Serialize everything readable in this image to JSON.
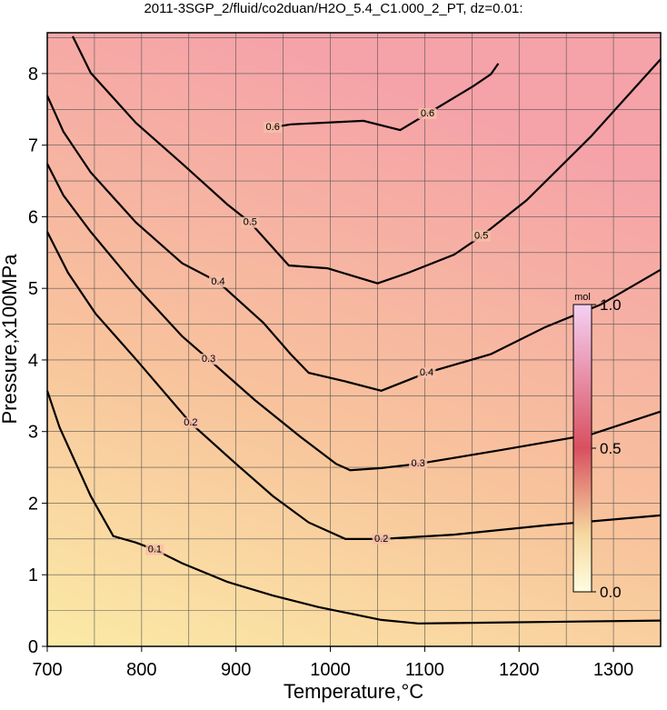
{
  "chart_data": {
    "type": "contour",
    "title": "2011-3SGP_2/fluid/co2duan/H2O_5.4_C1.000_2_PT, dz=0.01:",
    "xlabel": "Temperature,°C",
    "ylabel": "Pressure,x100MPa",
    "xlim": [
      700,
      1350
    ],
    "ylim": [
      0,
      8.57
    ],
    "xticks": [
      700,
      800,
      900,
      1000,
      1100,
      1200,
      1300
    ],
    "yticks": [
      0,
      1,
      2,
      3,
      4,
      5,
      6,
      7,
      8
    ],
    "xminorticks": [
      750,
      850,
      950,
      1050,
      1150,
      1250,
      1350
    ],
    "yminorticks": [
      0.5,
      1.5,
      2.5,
      3.5,
      4.5,
      5.5,
      6.5,
      7.5,
      8.5
    ],
    "grid": true,
    "contours": [
      {
        "level": 0.1,
        "x": [
          700,
          713,
          746,
          770,
          794,
          814,
          843,
          891,
          939,
          987,
          1054,
          1093,
          1350
        ],
        "y": [
          3.57,
          3.06,
          2.1,
          1.54,
          1.45,
          1.35,
          1.16,
          0.9,
          0.71,
          0.55,
          0.37,
          0.32,
          0.36
        ]
      },
      {
        "level": 0.2,
        "x": [
          700,
          722,
          751,
          794,
          852,
          900,
          939,
          977,
          1016,
          1054,
          1131,
          1228,
          1350
        ],
        "y": [
          5.79,
          5.22,
          4.65,
          4.01,
          3.12,
          2.55,
          2.1,
          1.73,
          1.5,
          1.5,
          1.56,
          1.69,
          1.83
        ]
      },
      {
        "level": 0.3,
        "x": [
          700,
          717,
          746,
          794,
          843,
          871,
          920,
          968,
          1006,
          1021,
          1054,
          1093,
          1180,
          1276,
          1350
        ],
        "y": [
          6.74,
          6.3,
          5.79,
          5.03,
          4.33,
          4.01,
          3.44,
          2.93,
          2.55,
          2.46,
          2.49,
          2.55,
          2.74,
          2.96,
          3.28
        ]
      },
      {
        "level": 0.4,
        "x": [
          700,
          717,
          746,
          794,
          843,
          881,
          929,
          958,
          977,
          1016,
          1054,
          1102,
          1170,
          1228,
          1286,
          1350
        ],
        "y": [
          7.69,
          7.19,
          6.62,
          5.92,
          5.35,
          5.09,
          4.52,
          4.08,
          3.82,
          3.7,
          3.57,
          3.82,
          4.08,
          4.46,
          4.77,
          5.26
        ]
      },
      {
        "level": 0.5,
        "x": [
          727,
          746,
          794,
          843,
          891,
          915,
          956,
          997,
          1050,
          1083,
          1131,
          1160,
          1208,
          1276,
          1350
        ],
        "y": [
          8.52,
          8.01,
          7.31,
          6.74,
          6.17,
          5.92,
          5.32,
          5.28,
          5.07,
          5.22,
          5.47,
          5.73,
          6.23,
          7.12,
          8.2
        ]
      },
      {
        "level": 0.6,
        "x": [
          939,
          958,
          1035,
          1074,
          1103,
          1151,
          1170,
          1178
        ],
        "y": [
          7.25,
          7.29,
          7.34,
          7.21,
          7.44,
          7.82,
          7.99,
          8.14
        ]
      }
    ],
    "colorbar": {
      "label": "mol",
      "lim": [
        0,
        1
      ],
      "ticks": [
        {
          "value": 0,
          "label": "0.0"
        },
        0.5,
        {
          "value": 1,
          "label": "1.0"
        }
      ]
    }
  }
}
